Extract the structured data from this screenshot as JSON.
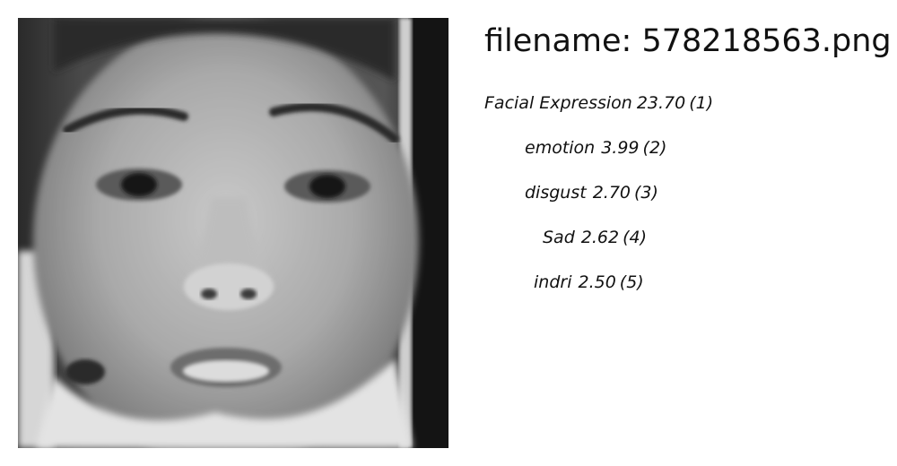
{
  "image": {
    "description_icon": "face-photo",
    "colormode": "grayscale"
  },
  "filename_line": "filename: 578218563.png",
  "predictions": [
    {
      "label": "Facial Expression",
      "score": "23.70",
      "rank": "(1)"
    },
    {
      "label": "emotion",
      "score": "3.99",
      "rank": "(2)"
    },
    {
      "label": "disgust",
      "score": "2.70",
      "rank": "(3)"
    },
    {
      "label": "Sad",
      "score": "2.62",
      "rank": "(4)"
    },
    {
      "label": "indri",
      "score": "2.50",
      "rank": "(5)"
    }
  ]
}
